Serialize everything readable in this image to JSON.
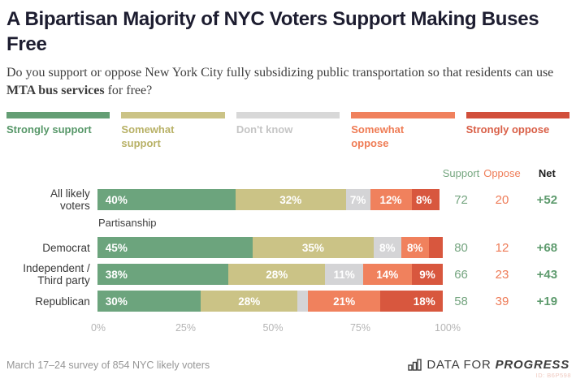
{
  "header": {
    "title": "A Bipartisan Majority of NYC Voters Support Making Buses Free",
    "subtitle_pre": "Do you support or oppose New York City fully subsidizing public transportation so that residents can use ",
    "subtitle_bold": "MTA bus services",
    "subtitle_post": " for free?"
  },
  "legend": [
    {
      "label": "Strongly support",
      "lines": [
        "Strongly support"
      ],
      "color": "#649E74",
      "text_color": "#569768"
    },
    {
      "label": "Somewhat support",
      "lines": [
        "Somewhat",
        "support"
      ],
      "color": "#CBC386",
      "text_color": "#B8B166"
    },
    {
      "label": "Don't know",
      "lines": [
        "Don't know"
      ],
      "color": "#D8D8D8",
      "text_color": "#C5C5C5"
    },
    {
      "label": "Somewhat oppose",
      "lines": [
        "Somewhat",
        "oppose"
      ],
      "color": "#F0815D",
      "text_color": "#EF7C55"
    },
    {
      "label": "Strongly oppose",
      "lines": [
        "Strongly oppose"
      ],
      "color": "#D14F3B",
      "text_color": "#D95F47"
    }
  ],
  "chart_data": {
    "type": "bar",
    "stacked": true,
    "orientation": "horizontal",
    "title": "A Bipartisan Majority of NYC Voters Support Making Buses Free",
    "series_names": [
      "Strongly support",
      "Somewhat support",
      "Don't know",
      "Somewhat oppose",
      "Strongly oppose"
    ],
    "series_colors": [
      "#6CA47D",
      "#CBC386",
      "#D4D4D6",
      "#F0815D",
      "#D8573E"
    ],
    "columns": {
      "support": "Support",
      "oppose": "Oppose",
      "net": "Net"
    },
    "x_axis": {
      "ticks": [
        "0%",
        "25%",
        "50%",
        "75%",
        "100%"
      ],
      "range": [
        0,
        100
      ],
      "grid": false
    },
    "groups": [
      {
        "label": "",
        "rows": [
          {
            "label": "All likely voters",
            "label_lines": [
              "All likely",
              "voters"
            ],
            "values": [
              40,
              32,
              7,
              12,
              8
            ],
            "seg_labels": [
              "40%",
              "32%",
              "7%",
              "12%",
              "8%"
            ],
            "support": "72",
            "oppose": "20",
            "net": "+52"
          }
        ]
      },
      {
        "label": "Partisanship",
        "rows": [
          {
            "label": "Democrat",
            "label_lines": [
              "Democrat"
            ],
            "values": [
              45,
              35,
              8,
              8,
              4
            ],
            "seg_labels": [
              "45%",
              "35%",
              "8%",
              "8%",
              null
            ],
            "support": "80",
            "oppose": "12",
            "net": "+68"
          },
          {
            "label": "Independent / Third party",
            "label_lines": [
              "Independent /",
              "Third party"
            ],
            "values": [
              38,
              28,
              11,
              14,
              9
            ],
            "seg_labels": [
              "38%",
              "28%",
              "11%",
              "14%",
              "9%"
            ],
            "support": "66",
            "oppose": "23",
            "net": "+43"
          },
          {
            "label": "Republican",
            "label_lines": [
              "Republican"
            ],
            "values": [
              30,
              28,
              3,
              21,
              18
            ],
            "seg_labels": [
              "30%",
              "28%",
              null,
              "21%",
              "18%"
            ],
            "support": "58",
            "oppose": "39",
            "net": "+19"
          }
        ]
      }
    ]
  },
  "footer": {
    "source": "March 17–24 survey of 854 NYC likely voters",
    "logo_prefix": "DATA FOR",
    "logo_suffix": "PROGRESS",
    "watermark": "ID: B6P598"
  }
}
